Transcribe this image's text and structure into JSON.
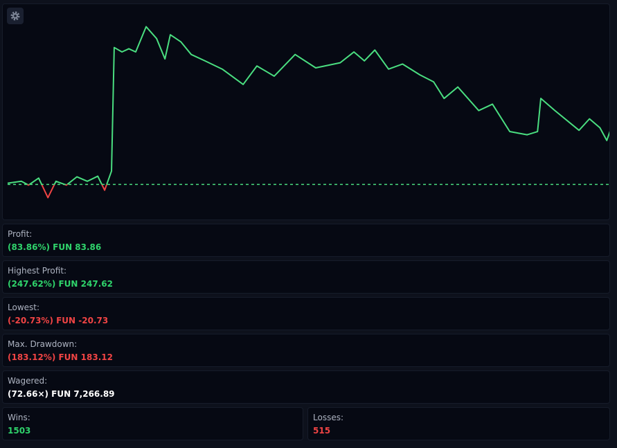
{
  "chart_data": {
    "type": "line",
    "x": [
      0,
      46,
      70,
      104,
      135,
      162,
      197,
      232,
      267,
      302,
      325,
      348,
      357,
      383,
      406,
      429,
      464,
      499,
      527,
      545,
      580,
      615,
      661,
      719,
      789,
      835,
      893,
      963,
      1032,
      1114,
      1160,
      1195,
      1230,
      1276,
      1323,
      1381,
      1427,
      1462,
      1508,
      1578,
      1624,
      1682,
      1740,
      1775,
      1786,
      1833,
      1914,
      1949,
      1984,
      2007,
      2018
    ],
    "series": [
      {
        "color": "#4ade80",
        "negative_color": "#ef4444",
        "values": [
          2,
          5,
          -1,
          10,
          -20.73,
          5,
          -1,
          12,
          5,
          13,
          -9,
          21,
          215,
          208,
          213,
          208,
          247.62,
          229,
          197,
          235,
          224,
          204,
          194,
          181,
          157,
          186,
          170,
          204,
          183,
          191,
          208,
          194,
          211,
          181,
          189,
          172,
          161,
          135,
          153,
          116,
          126,
          83,
          78,
          83,
          135,
          116,
          85,
          103,
          89,
          69,
          83.86
        ]
      }
    ],
    "xlim": [
      0,
      2018
    ],
    "ylim": [
      -55,
      283
    ],
    "baseline": 0
  },
  "stats": [
    {
      "label": "Profit:",
      "value": "(83.86%) FUN 83.86",
      "color": "#2fd36b"
    },
    {
      "label": "Highest Profit:",
      "value": "(247.62%) FUN 247.62",
      "color": "#2fd36b"
    },
    {
      "label": "Lowest:",
      "value": "(-20.73%) FUN -20.73",
      "color": "#f04444"
    },
    {
      "label": "Max. Drawdown:",
      "value": "(183.12%) FUN 183.12",
      "color": "#f04444"
    },
    {
      "label": "Wagered:",
      "value": "(72.66×) FUN 7,266.89",
      "color": "#ffffff"
    }
  ],
  "split": [
    {
      "label": "Wins:",
      "value": 1503,
      "color": "#2fd36b"
    },
    {
      "label": "Losses:",
      "value": 515,
      "color": "#f04444"
    }
  ]
}
